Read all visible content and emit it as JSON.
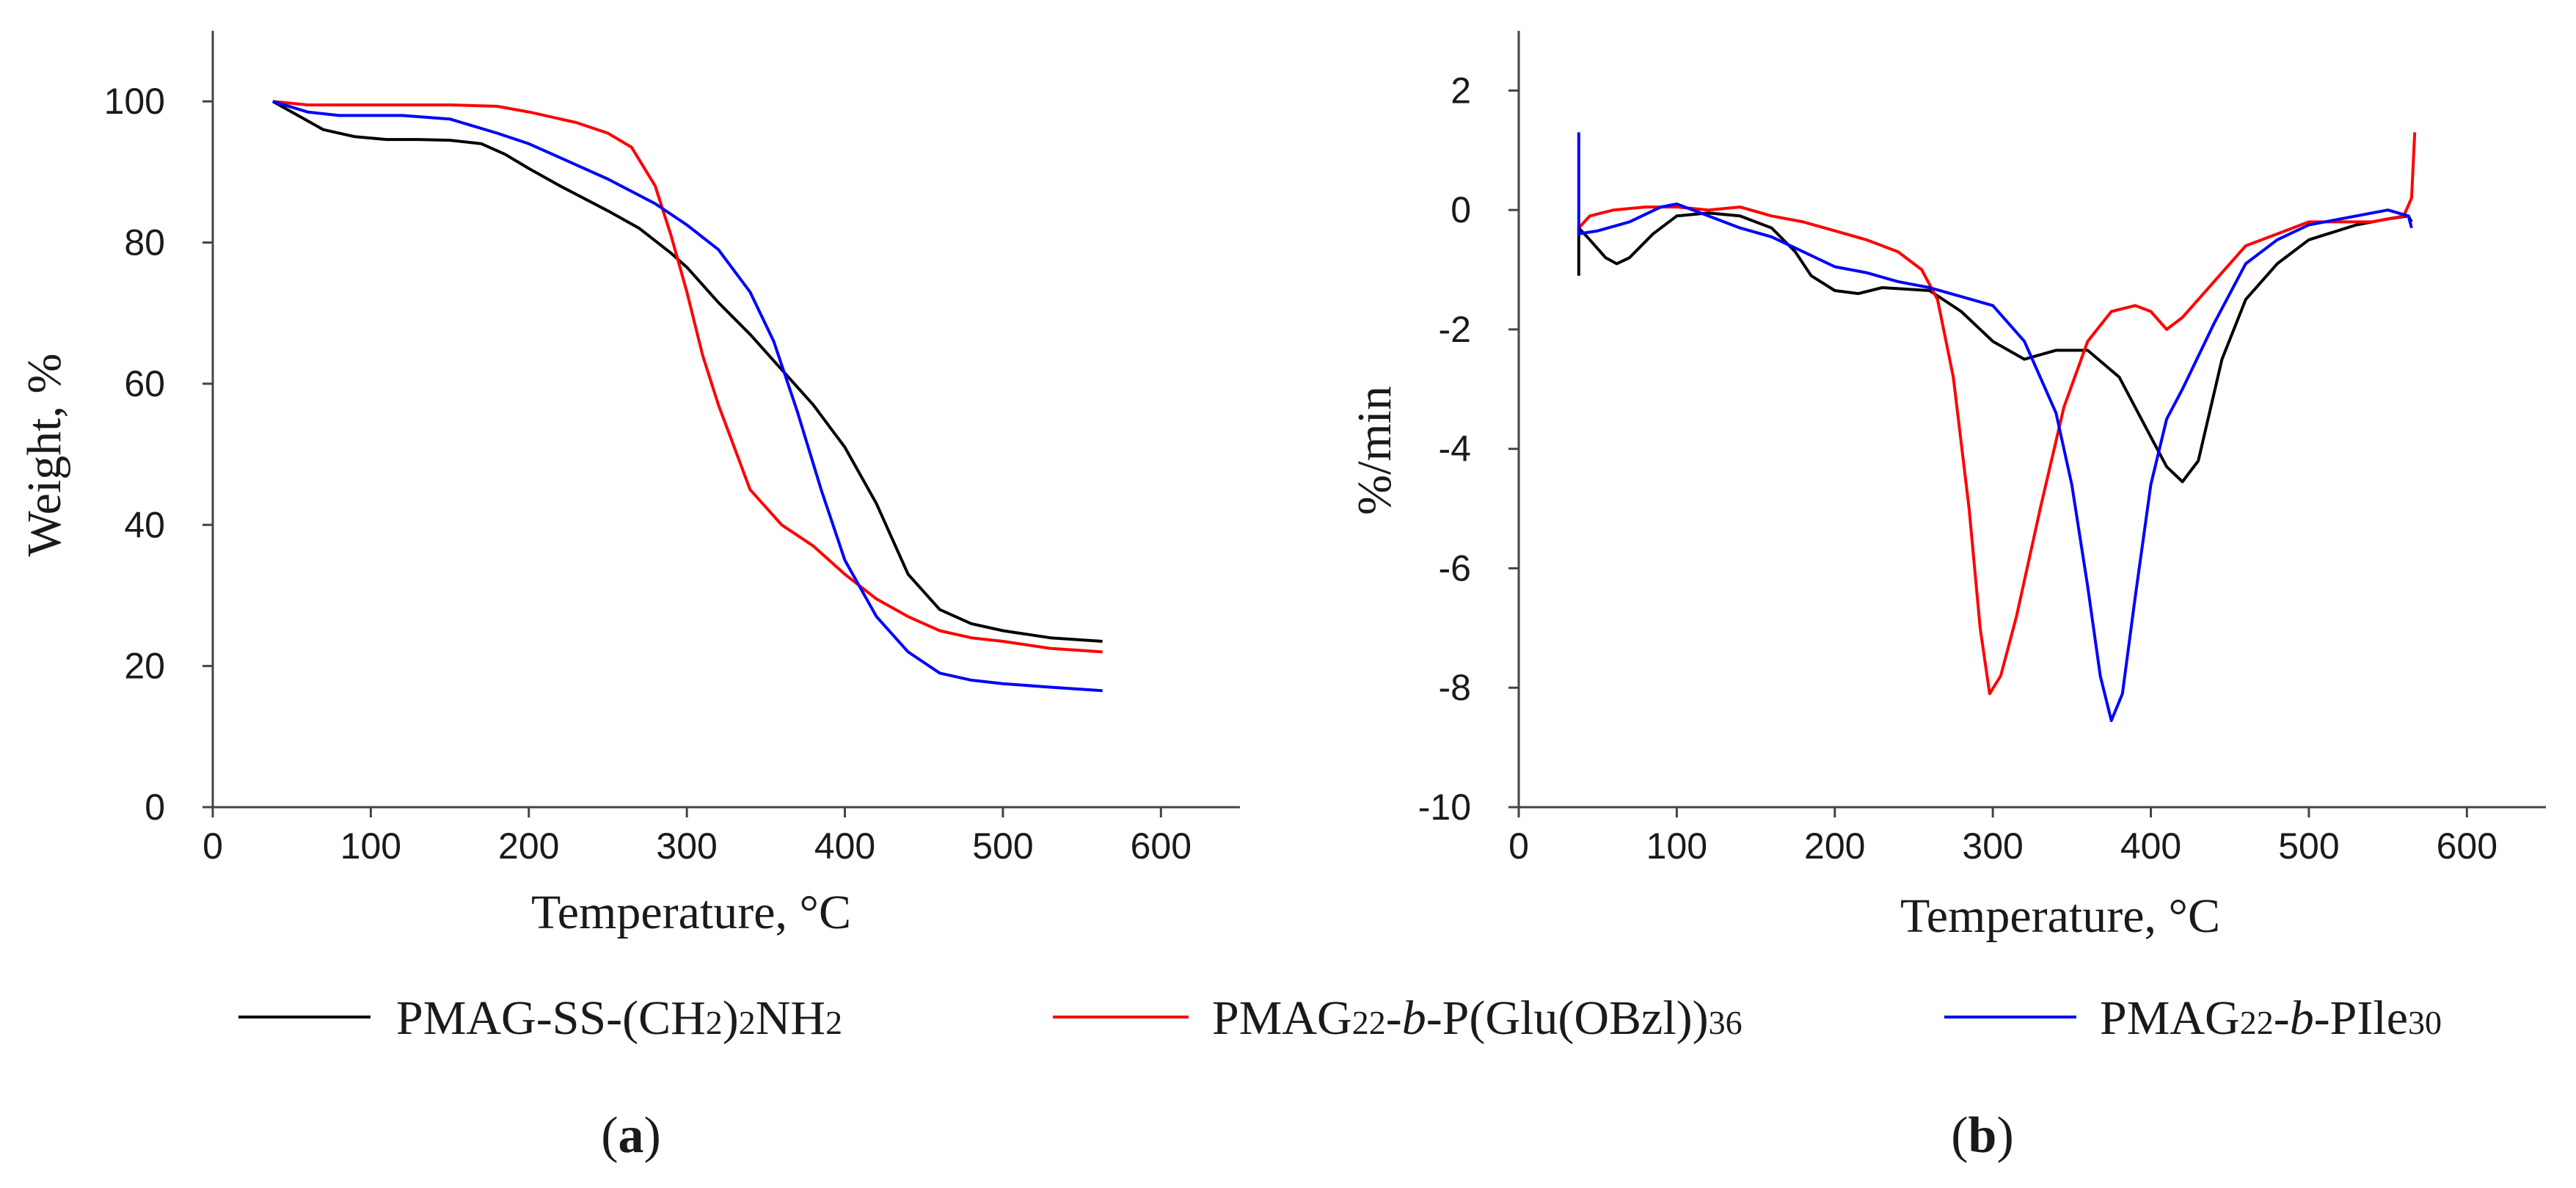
{
  "chart_data": [
    {
      "type": "line",
      "panel_label": "(a)",
      "panel_letter": "a",
      "xlabel": "Temperature, °C",
      "ylabel": "Weight, %",
      "xlim": [
        0,
        650
      ],
      "ylim": [
        0,
        110
      ],
      "xticks": [
        0,
        100,
        200,
        300,
        400,
        500,
        600
      ],
      "yticks": [
        0,
        20,
        40,
        60,
        80,
        100
      ],
      "grid": false,
      "series": [
        {
          "name": "PMAG-SS-(CH2)2NH2",
          "color": "#000000",
          "points": [
            [
              38,
              100
            ],
            [
              50,
              98.5
            ],
            [
              70,
              96
            ],
            [
              90,
              95
            ],
            [
              110,
              94.6
            ],
            [
              130,
              94.6
            ],
            [
              150,
              94.5
            ],
            [
              170,
              94
            ],
            [
              185,
              92.5
            ],
            [
              200,
              90.5
            ],
            [
              220,
              88
            ],
            [
              250,
              84.5
            ],
            [
              270,
              82
            ],
            [
              290,
              78.5
            ],
            [
              300,
              76.5
            ],
            [
              320,
              71.5
            ],
            [
              340,
              67
            ],
            [
              360,
              62
            ],
            [
              380,
              57
            ],
            [
              400,
              51
            ],
            [
              420,
              43
            ],
            [
              440,
              33
            ],
            [
              460,
              28
            ],
            [
              480,
              26
            ],
            [
              500,
              25
            ],
            [
              530,
              24
            ],
            [
              563,
              23.5
            ]
          ]
        },
        {
          "name": "PMAG22-b-P(Glu(OBzl))36",
          "color": "#ff0000",
          "points": [
            [
              38,
              100
            ],
            [
              60,
              99.5
            ],
            [
              100,
              99.5
            ],
            [
              150,
              99.5
            ],
            [
              180,
              99.3
            ],
            [
              200,
              98.5
            ],
            [
              230,
              97
            ],
            [
              250,
              95.5
            ],
            [
              265,
              93.5
            ],
            [
              280,
              88
            ],
            [
              290,
              81
            ],
            [
              300,
              73
            ],
            [
              310,
              64
            ],
            [
              320,
              57
            ],
            [
              330,
              51
            ],
            [
              340,
              45
            ],
            [
              360,
              40
            ],
            [
              380,
              37
            ],
            [
              400,
              33
            ],
            [
              420,
              29.5
            ],
            [
              440,
              27
            ],
            [
              460,
              25
            ],
            [
              480,
              24
            ],
            [
              500,
              23.5
            ],
            [
              530,
              22.5
            ],
            [
              563,
              22
            ]
          ]
        },
        {
          "name": "PMAG22-b-PIle30",
          "color": "#0000ff",
          "points": [
            [
              38,
              100
            ],
            [
              60,
              98.5
            ],
            [
              80,
              98
            ],
            [
              100,
              98
            ],
            [
              120,
              98
            ],
            [
              150,
              97.5
            ],
            [
              180,
              95.5
            ],
            [
              200,
              94
            ],
            [
              220,
              92
            ],
            [
              250,
              89
            ],
            [
              280,
              85.5
            ],
            [
              300,
              82.5
            ],
            [
              320,
              79
            ],
            [
              340,
              73
            ],
            [
              355,
              66
            ],
            [
              370,
              56
            ],
            [
              385,
              45
            ],
            [
              400,
              35
            ],
            [
              420,
              27
            ],
            [
              440,
              22
            ],
            [
              460,
              19
            ],
            [
              480,
              18
            ],
            [
              500,
              17.5
            ],
            [
              530,
              17
            ],
            [
              563,
              16.5
            ]
          ]
        }
      ]
    },
    {
      "type": "line",
      "panel_label": "(b)",
      "panel_letter": "b",
      "xlabel": "Temperature, °C",
      "ylabel": "%/min",
      "xlim": [
        0,
        650
      ],
      "ylim": [
        -10,
        3
      ],
      "xticks": [
        0,
        100,
        200,
        300,
        400,
        500,
        600
      ],
      "yticks": [
        -10,
        -8,
        -6,
        -4,
        -2,
        0,
        2
      ],
      "grid": false,
      "series": [
        {
          "name": "PMAG-SS-(CH2)2NH2",
          "color": "#000000",
          "points": [
            [
              38,
              -1.1
            ],
            [
              38,
              -0.3
            ],
            [
              45,
              -0.5
            ],
            [
              55,
              -0.8
            ],
            [
              62,
              -0.9
            ],
            [
              70,
              -0.8
            ],
            [
              85,
              -0.4
            ],
            [
              100,
              -0.1
            ],
            [
              120,
              -0.05
            ],
            [
              140,
              -0.1
            ],
            [
              160,
              -0.3
            ],
            [
              175,
              -0.7
            ],
            [
              185,
              -1.1
            ],
            [
              200,
              -1.35
            ],
            [
              215,
              -1.4
            ],
            [
              230,
              -1.3
            ],
            [
              260,
              -1.35
            ],
            [
              280,
              -1.7
            ],
            [
              300,
              -2.2
            ],
            [
              320,
              -2.5
            ],
            [
              340,
              -2.35
            ],
            [
              360,
              -2.35
            ],
            [
              380,
              -2.8
            ],
            [
              400,
              -3.8
            ],
            [
              410,
              -4.3
            ],
            [
              420,
              -4.55
            ],
            [
              430,
              -4.2
            ],
            [
              445,
              -2.5
            ],
            [
              460,
              -1.5
            ],
            [
              480,
              -0.9
            ],
            [
              500,
              -0.5
            ],
            [
              530,
              -0.25
            ],
            [
              550,
              -0.15
            ],
            [
              563,
              -0.1
            ],
            [
              565,
              -0.2
            ]
          ]
        },
        {
          "name": "PMAG22-b-P(Glu(OBzl))36",
          "color": "#ff0000",
          "points": [
            [
              38,
              -0.3
            ],
            [
              45,
              -0.1
            ],
            [
              60,
              0
            ],
            [
              80,
              0.05
            ],
            [
              100,
              0.05
            ],
            [
              120,
              0.0
            ],
            [
              140,
              0.05
            ],
            [
              160,
              -0.1
            ],
            [
              180,
              -0.2
            ],
            [
              200,
              -0.35
            ],
            [
              220,
              -0.5
            ],
            [
              240,
              -0.7
            ],
            [
              255,
              -1.0
            ],
            [
              265,
              -1.5
            ],
            [
              275,
              -2.8
            ],
            [
              285,
              -5
            ],
            [
              292,
              -7
            ],
            [
              298,
              -8.1
            ],
            [
              305,
              -7.8
            ],
            [
              315,
              -6.8
            ],
            [
              330,
              -5
            ],
            [
              345,
              -3.3
            ],
            [
              360,
              -2.2
            ],
            [
              375,
              -1.7
            ],
            [
              390,
              -1.6
            ],
            [
              400,
              -1.7
            ],
            [
              410,
              -2.0
            ],
            [
              420,
              -1.8
            ],
            [
              440,
              -1.2
            ],
            [
              460,
              -0.6
            ],
            [
              480,
              -0.4
            ],
            [
              500,
              -0.2
            ],
            [
              520,
              -0.2
            ],
            [
              540,
              -0.2
            ],
            [
              560,
              -0.1
            ],
            [
              565,
              0.2
            ],
            [
              567,
              1.3
            ]
          ]
        },
        {
          "name": "PMAG22-b-PIle30",
          "color": "#0000ff",
          "points": [
            [
              38,
              1.3
            ],
            [
              38,
              -0.4
            ],
            [
              50,
              -0.35
            ],
            [
              70,
              -0.2
            ],
            [
              90,
              0.05
            ],
            [
              100,
              0.1
            ],
            [
              120,
              -0.1
            ],
            [
              140,
              -0.3
            ],
            [
              160,
              -0.45
            ],
            [
              180,
              -0.7
            ],
            [
              200,
              -0.95
            ],
            [
              220,
              -1.05
            ],
            [
              240,
              -1.2
            ],
            [
              260,
              -1.3
            ],
            [
              280,
              -1.45
            ],
            [
              300,
              -1.6
            ],
            [
              320,
              -2.2
            ],
            [
              340,
              -3.4
            ],
            [
              350,
              -4.6
            ],
            [
              360,
              -6.3
            ],
            [
              368,
              -7.8
            ],
            [
              375,
              -8.55
            ],
            [
              382,
              -8.1
            ],
            [
              390,
              -6.5
            ],
            [
              400,
              -4.6
            ],
            [
              410,
              -3.5
            ],
            [
              420,
              -3.0
            ],
            [
              440,
              -1.9
            ],
            [
              460,
              -0.9
            ],
            [
              480,
              -0.5
            ],
            [
              500,
              -0.25
            ],
            [
              530,
              -0.1
            ],
            [
              550,
              0.0
            ],
            [
              563,
              -0.1
            ],
            [
              565,
              -0.3
            ]
          ]
        }
      ]
    }
  ],
  "legend": [
    {
      "series_index": 0,
      "base": "PMAG-SS-(CH",
      "sub1": "2",
      "mid1": ")",
      "sub2": "2",
      "mid2": "NH",
      "sub3": "2",
      "color": "#000000"
    },
    {
      "series_index": 1,
      "base": "PMAG",
      "sub1": "22",
      "mid1": "-",
      "ital": "b",
      "mid2": "-P(Glu(OBzl))",
      "sub2": "36",
      "color": "#ff0000"
    },
    {
      "series_index": 2,
      "base": "PMAG",
      "sub1": "22",
      "mid1": "-",
      "ital": "b",
      "mid2": "-PIle",
      "sub2": "30",
      "color": "#0000ff"
    }
  ]
}
